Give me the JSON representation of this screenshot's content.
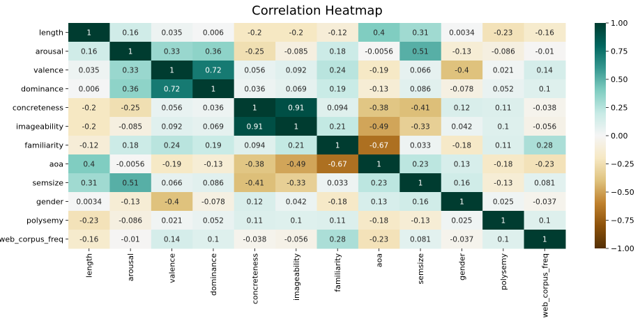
{
  "chart_data": {
    "type": "heatmap",
    "title": "Correlation Heatmap",
    "variables": [
      "length",
      "arousal",
      "valence",
      "dominance",
      "concreteness",
      "imageability",
      "familiarity",
      "aoa",
      "semsize",
      "gender",
      "polysemy",
      "web_corpus_freq"
    ],
    "labels": [
      [
        "1",
        "0.16",
        "0.035",
        "0.006",
        "-0.2",
        "-0.2",
        "-0.12",
        "0.4",
        "0.31",
        "0.0034",
        "-0.23",
        "-0.16"
      ],
      [
        "0.16",
        "1",
        "0.33",
        "0.36",
        "-0.25",
        "-0.085",
        "0.18",
        "-0.0056",
        "0.51",
        "-0.13",
        "-0.086",
        "-0.01"
      ],
      [
        "0.035",
        "0.33",
        "1",
        "0.72",
        "0.056",
        "0.092",
        "0.24",
        "-0.19",
        "0.066",
        "-0.4",
        "0.021",
        "0.14"
      ],
      [
        "0.006",
        "0.36",
        "0.72",
        "1",
        "0.036",
        "0.069",
        "0.19",
        "-0.13",
        "0.086",
        "-0.078",
        "0.052",
        "0.1"
      ],
      [
        "-0.2",
        "-0.25",
        "0.056",
        "0.036",
        "1",
        "0.91",
        "0.094",
        "-0.38",
        "-0.41",
        "0.12",
        "0.11",
        "-0.038"
      ],
      [
        "-0.2",
        "-0.085",
        "0.092",
        "0.069",
        "0.91",
        "1",
        "0.21",
        "-0.49",
        "-0.33",
        "0.042",
        "0.1",
        "-0.056"
      ],
      [
        "-0.12",
        "0.18",
        "0.24",
        "0.19",
        "0.094",
        "0.21",
        "1",
        "-0.67",
        "0.033",
        "-0.18",
        "0.11",
        "0.28"
      ],
      [
        "0.4",
        "-0.0056",
        "-0.19",
        "-0.13",
        "-0.38",
        "-0.49",
        "-0.67",
        "1",
        "0.23",
        "0.13",
        "-0.18",
        "-0.23"
      ],
      [
        "0.31",
        "0.51",
        "0.066",
        "0.086",
        "-0.41",
        "-0.33",
        "0.033",
        "0.23",
        "1",
        "0.16",
        "-0.13",
        "0.081"
      ],
      [
        "0.0034",
        "-0.13",
        "-0.4",
        "-0.078",
        "0.12",
        "0.042",
        "-0.18",
        "0.13",
        "0.16",
        "1",
        "0.025",
        "-0.037"
      ],
      [
        "-0.23",
        "-0.086",
        "0.021",
        "0.052",
        "0.11",
        "0.1",
        "0.11",
        "-0.18",
        "-0.13",
        "0.025",
        "1",
        "0.1"
      ],
      [
        "-0.16",
        "-0.01",
        "0.14",
        "0.1",
        "-0.038",
        "-0.056",
        "0.28",
        "-0.23",
        "0.081",
        "-0.037",
        "0.1",
        "1"
      ]
    ],
    "colormap": "BrBG",
    "vmin": -1,
    "vmax": 1,
    "colorbar_ticks": [
      "1.00",
      "0.75",
      "0.50",
      "0.25",
      "0.00",
      "−0.25",
      "−0.50",
      "−0.75",
      "−1.00"
    ]
  }
}
